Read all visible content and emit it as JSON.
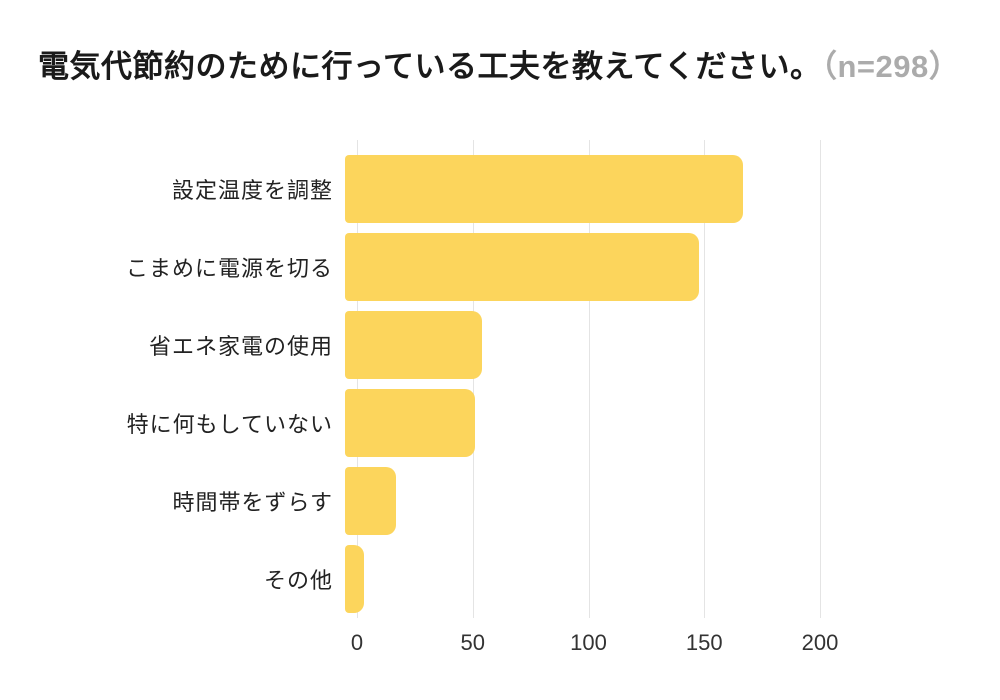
{
  "title": {
    "text": "電気代節約のために行っている工夫を教えてください。",
    "sample": "（n=298）"
  },
  "colors": {
    "bar": "#FCD55C",
    "title": "#1A1A1A",
    "sample": "#ABABAB",
    "gridline": "#E4E4E4",
    "axis_label": "#333333",
    "category_label": "#222222",
    "background": "#FFFFFF"
  },
  "chart_data": {
    "type": "bar",
    "orientation": "horizontal",
    "title": "電気代節約のために行っている工夫を教えてください。（n=298）",
    "sample_size": 298,
    "categories": [
      "設定温度を調整",
      "こまめに電源を切る",
      "省エネ家電の使用",
      "特に何もしていない",
      "時間帯をずらす",
      "その他"
    ],
    "values": [
      172,
      153,
      59,
      56,
      22,
      8
    ],
    "x_ticks": [
      0,
      50,
      100,
      150,
      200
    ],
    "xlim": [
      0,
      226
    ],
    "xlabel": "",
    "ylabel": "",
    "grid": "vertical",
    "legend": "none",
    "bar_color": "#FCD55C"
  }
}
